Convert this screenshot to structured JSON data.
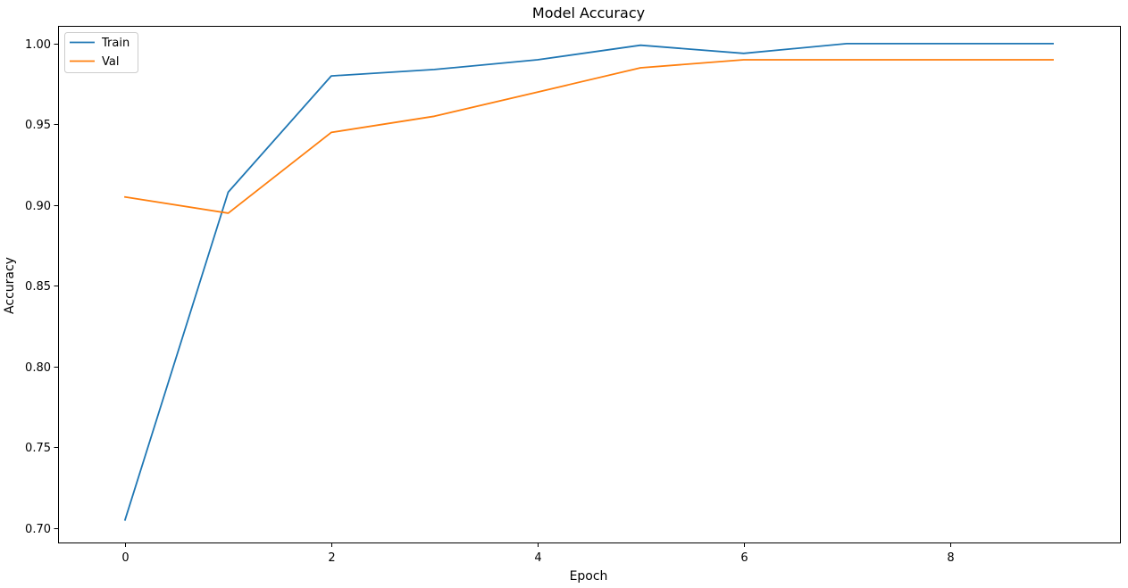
{
  "chart_data": {
    "type": "line",
    "title": "Model Accuracy",
    "xlabel": "Epoch",
    "ylabel": "Accuracy",
    "x": [
      0,
      1,
      2,
      3,
      4,
      5,
      6,
      7,
      8,
      9
    ],
    "xlim": [
      -0.65,
      9.65
    ],
    "ylim": [
      0.691,
      1.011
    ],
    "xticks": [
      0,
      2,
      4,
      6,
      8
    ],
    "xtick_labels": [
      "0",
      "2",
      "4",
      "6",
      "8"
    ],
    "yticks": [
      0.7,
      0.75,
      0.8,
      0.85,
      0.9,
      0.95,
      1.0
    ],
    "ytick_labels": [
      "0.70",
      "0.75",
      "0.80",
      "0.85",
      "0.90",
      "0.95",
      "1.00"
    ],
    "grid": false,
    "legend_position": "top-left",
    "series": [
      {
        "name": "Train",
        "color": "#1f77b4",
        "values": [
          0.705,
          0.908,
          0.98,
          0.984,
          0.99,
          0.999,
          0.994,
          1.0,
          1.0,
          1.0
        ]
      },
      {
        "name": "Val",
        "color": "#ff7f0e",
        "values": [
          0.905,
          0.895,
          0.945,
          0.955,
          0.97,
          0.985,
          0.99,
          0.99,
          0.99,
          0.99
        ]
      }
    ]
  }
}
